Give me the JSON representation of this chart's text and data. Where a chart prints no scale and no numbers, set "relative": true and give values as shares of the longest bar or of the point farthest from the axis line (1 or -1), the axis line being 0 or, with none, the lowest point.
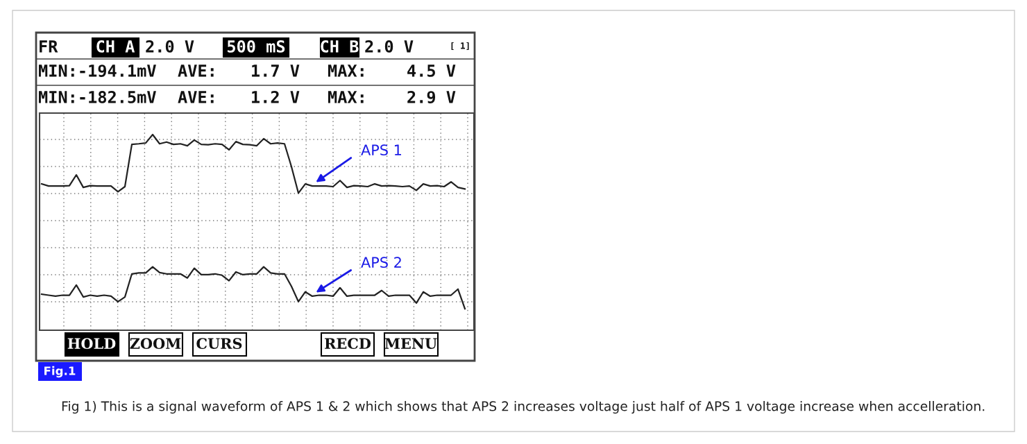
{
  "chart_data": {
    "type": "line",
    "relative": true,
    "grid": true,
    "categories": [
      null,
      null,
      null,
      null,
      null,
      null,
      null,
      null,
      null,
      null,
      null,
      null,
      null,
      null,
      null,
      null,
      null,
      null,
      null,
      null,
      null,
      null,
      null,
      null,
      null,
      null,
      null,
      null,
      null,
      null,
      null,
      null,
      null,
      null,
      null,
      null,
      null,
      null,
      null,
      null,
      null,
      null,
      null,
      null,
      null,
      null,
      null,
      null,
      null,
      null,
      null,
      null,
      null,
      null,
      null,
      null,
      null,
      null,
      null,
      null,
      null,
      null
    ],
    "series": [
      {
        "name": "APS 1",
        "color": "#222222",
        "values": [
          0.748,
          0.737,
          0.737,
          0.737,
          0.739,
          0.794,
          0.73,
          0.739,
          0.737,
          0.737,
          0.737,
          0.708,
          0.734,
          0.95,
          0.953,
          0.957,
          1.0,
          0.953,
          0.962,
          0.95,
          0.953,
          0.943,
          0.972,
          0.95,
          0.948,
          0.953,
          0.95,
          0.922,
          0.964,
          0.95,
          0.948,
          0.943,
          0.979,
          0.953,
          0.957,
          0.953,
          0.836,
          0.701,
          0.748,
          0.737,
          0.737,
          0.737,
          0.734,
          0.765,
          0.73,
          0.739,
          0.737,
          0.734,
          0.748,
          0.737,
          0.739,
          0.737,
          0.734,
          0.737,
          0.715,
          0.748,
          0.737,
          0.739,
          0.734,
          0.758,
          0.73,
          0.722
        ]
      },
      {
        "name": "APS 2",
        "color": "#222222",
        "values": [
          0.184,
          0.179,
          0.174,
          0.179,
          0.179,
          0.231,
          0.17,
          0.179,
          0.174,
          0.179,
          0.174,
          0.146,
          0.17,
          0.288,
          0.293,
          0.293,
          0.324,
          0.295,
          0.288,
          0.288,
          0.288,
          0.267,
          0.317,
          0.284,
          0.284,
          0.288,
          0.281,
          0.253,
          0.298,
          0.284,
          0.288,
          0.288,
          0.324,
          0.293,
          0.288,
          0.288,
          0.224,
          0.146,
          0.196,
          0.174,
          0.179,
          0.179,
          0.174,
          0.217,
          0.174,
          0.179,
          0.179,
          0.179,
          0.179,
          0.203,
          0.174,
          0.179,
          0.179,
          0.179,
          0.139,
          0.196,
          0.174,
          0.179,
          0.179,
          0.179,
          0.21,
          0.11
        ]
      }
    ],
    "annotations": [
      "FR",
      "CH A",
      "2.0 V",
      "500 mS",
      "CH B",
      "2.0 V",
      "[ 1]",
      "MIN:-194.1mV",
      "AVE:",
      "1.7 V",
      "MAX:",
      "4.5 V",
      "MIN:-182.5mV",
      "AVE:",
      "1.2 V",
      "MAX:",
      "2.9 V",
      "HOLD",
      "ZOOM",
      "CURS",
      "RECD",
      "MENU",
      "Fig.1",
      "Fig 1) This is a signal waveform of APS 1 & 2 which shows that APS 2 increases voltage just half of APS 1 voltage increase when accelleration."
    ]
  }
}
